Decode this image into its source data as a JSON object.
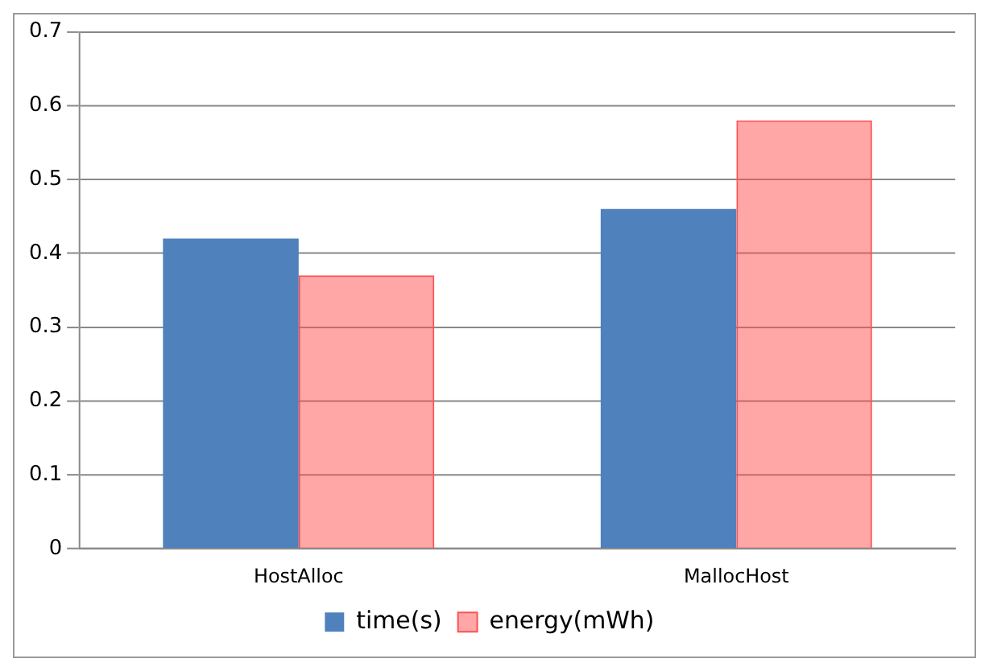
{
  "chart_data": {
    "type": "bar",
    "categories": [
      "HostAlloc",
      "MallocHost"
    ],
    "series": [
      {
        "name": "time(s)",
        "color": "#4f81bd",
        "values": [
          0.42,
          0.46
        ]
      },
      {
        "name": "energy(mWh)",
        "color": "#ff5050",
        "values": [
          0.37,
          0.58
        ]
      }
    ],
    "ylim": [
      0,
      0.7
    ],
    "yticks": [
      0,
      0.1,
      0.2,
      0.3,
      0.4,
      0.5,
      0.6,
      0.7
    ],
    "grid": "y",
    "legend": "bottom"
  }
}
